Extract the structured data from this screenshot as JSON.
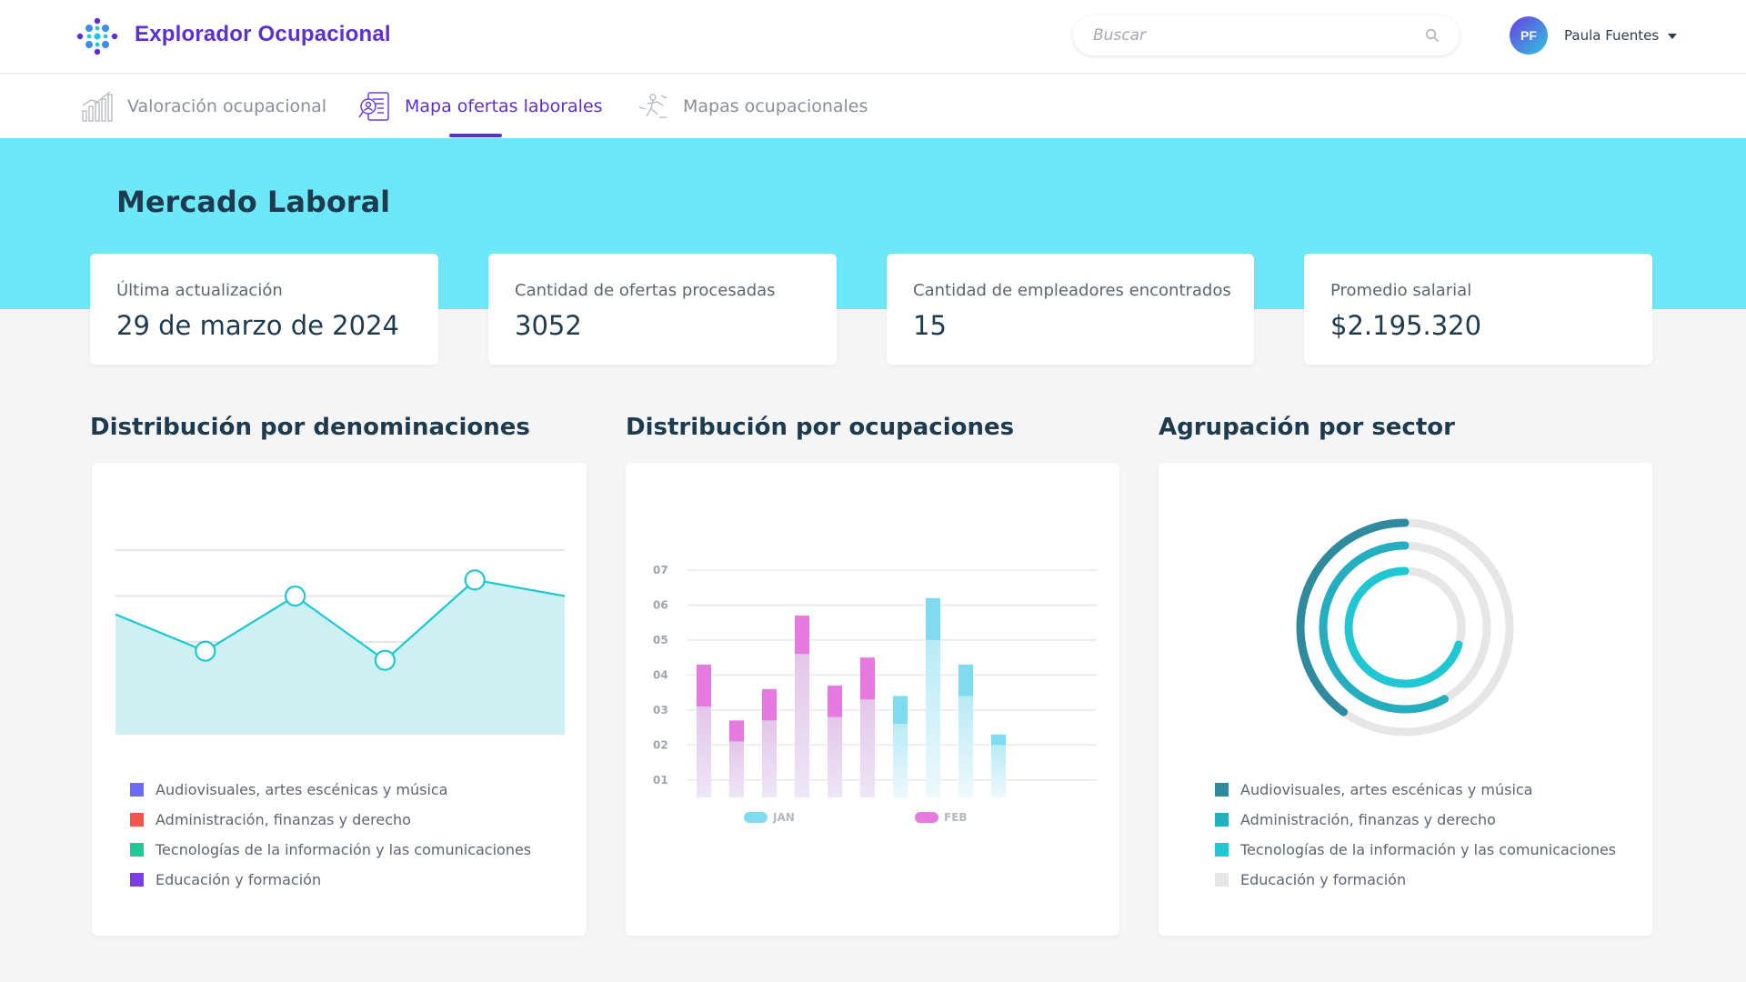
{
  "app": {
    "title": "Explorador Ocupacional"
  },
  "search": {
    "placeholder": "Buscar"
  },
  "user": {
    "initials": "PF",
    "name": "Paula Fuentes"
  },
  "tabs": [
    {
      "label": "Valoración ocupacional",
      "icon": "bar-chart-icon",
      "active": false
    },
    {
      "label": "Mapa ofertas laborales",
      "icon": "job-offers-map-icon",
      "active": true
    },
    {
      "label": "Mapas ocupacionales",
      "icon": "occupational-map-icon",
      "active": false
    }
  ],
  "page": {
    "title": "Mercado Laboral"
  },
  "kpis": [
    {
      "label": "Última actualización",
      "value": "29 de marzo de 2024"
    },
    {
      "label": "Cantidad de ofertas procesadas",
      "value": "3052"
    },
    {
      "label": "Cantidad de empleadores encontrados",
      "value": "15"
    },
    {
      "label": "Promedio salarial",
      "value": "$2.195.320"
    }
  ],
  "sections": {
    "denominaciones": {
      "title": "Distribución por denominaciones",
      "legend": [
        {
          "label": "Audiovisuales, artes escénicas y música",
          "color": "#6b6cf3"
        },
        {
          "label": "Administración, finanzas y derecho",
          "color": "#f0574a"
        },
        {
          "label": "Tecnologías de la información y las comunicaciones",
          "color": "#20c997"
        },
        {
          "label": "Educación y formación",
          "color": "#7b3fe0"
        }
      ]
    },
    "ocupaciones": {
      "title": "Distribución por ocupaciones"
    },
    "sector": {
      "title": "Agrupación por sector",
      "legend": [
        {
          "label": "Audiovisuales, artes escénicas y música",
          "color": "#2f8a9e"
        },
        {
          "label": "Administración, finanzas y derecho",
          "color": "#24aebf"
        },
        {
          "label": "Tecnologías de la información y las comunicaciones",
          "color": "#1fc7d2"
        },
        {
          "label": "Educación y formación",
          "color": "#e6e6e6"
        }
      ]
    }
  },
  "chart_data": [
    {
      "type": "area",
      "x": [
        0,
        1,
        2,
        3,
        4,
        5
      ],
      "values": [
        2.6,
        1.8,
        3.0,
        1.6,
        3.35,
        3.0
      ],
      "ylim": [
        0,
        4
      ],
      "grid": true,
      "color": "#1fc7d2"
    },
    {
      "type": "bar",
      "stacked": true,
      "y_ticks": [
        "01",
        "02",
        "03",
        "04",
        "05",
        "06",
        "07"
      ],
      "ylim": [
        0.5,
        7
      ],
      "series": [
        {
          "name": "JAN",
          "color": "#7fdcf0",
          "values": [
            3.1,
            2.1,
            2.7,
            4.6,
            2.8,
            3.3,
            2.6,
            5.0,
            3.4,
            2.0
          ]
        },
        {
          "name": "FEB",
          "color": "#e67ae0",
          "values": [
            1.2,
            0.6,
            0.9,
            1.1,
            0.9,
            1.2,
            0.8,
            1.2,
            0.9,
            0.3
          ]
        }
      ],
      "highlight_series_by_bar": [
        "FEB",
        "FEB",
        "FEB",
        "FEB",
        "FEB",
        "FEB",
        "JAN",
        "JAN",
        "JAN",
        "JAN"
      ],
      "legend": [
        "JAN",
        "FEB"
      ]
    },
    {
      "type": "radial",
      "labels": [
        "Audiovisuales, artes escénicas y música",
        "Administración, finanzas y derecho",
        "Tecnologías de la información y las comunicaciones"
      ],
      "values": [
        0.6,
        0.42,
        0.3
      ],
      "colors": [
        "#2f8a9e",
        "#24aebf",
        "#1fc7d2"
      ],
      "track_color": "#e6e6e6"
    }
  ]
}
